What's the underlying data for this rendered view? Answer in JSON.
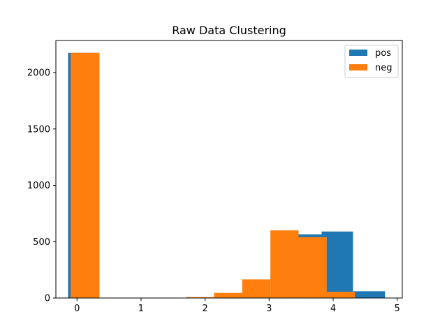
{
  "chart_data": {
    "type": "bar",
    "title": "Raw Data Clustering",
    "xlabel": "",
    "ylabel": "",
    "xlim": [
      -0.33,
      5.08
    ],
    "ylim": [
      0,
      2285
    ],
    "xticks": [
      0,
      1,
      2,
      3,
      4,
      5
    ],
    "yticks": [
      0,
      500,
      1000,
      1500,
      2000
    ],
    "legend_position": "top-right",
    "series": [
      {
        "name": "pos",
        "color": "#1f77b4",
        "bins": [
          {
            "x0": -0.14,
            "x1": 0.35,
            "value": 2175
          },
          {
            "x0": 0.35,
            "x1": 0.85,
            "value": 0
          },
          {
            "x0": 0.85,
            "x1": 1.34,
            "value": 0
          },
          {
            "x0": 1.34,
            "x1": 1.84,
            "value": 0
          },
          {
            "x0": 1.84,
            "x1": 2.33,
            "value": 0
          },
          {
            "x0": 2.33,
            "x1": 2.83,
            "value": 0
          },
          {
            "x0": 2.83,
            "x1": 3.32,
            "value": 0
          },
          {
            "x0": 3.32,
            "x1": 3.82,
            "value": 565
          },
          {
            "x0": 3.82,
            "x1": 4.31,
            "value": 590
          },
          {
            "x0": 4.31,
            "x1": 4.81,
            "value": 60
          }
        ]
      },
      {
        "name": "neg",
        "color": "#ff7f0e",
        "bins": [
          {
            "x0": -0.1,
            "x1": 0.35,
            "value": 2175
          },
          {
            "x0": 0.35,
            "x1": 0.8,
            "value": 0
          },
          {
            "x0": 0.8,
            "x1": 1.25,
            "value": 0
          },
          {
            "x0": 1.25,
            "x1": 1.7,
            "value": 0
          },
          {
            "x0": 1.7,
            "x1": 2.14,
            "value": 8
          },
          {
            "x0": 2.14,
            "x1": 2.58,
            "value": 45
          },
          {
            "x0": 2.58,
            "x1": 3.02,
            "value": 165
          },
          {
            "x0": 3.02,
            "x1": 3.46,
            "value": 600
          },
          {
            "x0": 3.46,
            "x1": 3.9,
            "value": 540
          },
          {
            "x0": 3.9,
            "x1": 4.34,
            "value": 55
          }
        ]
      }
    ]
  }
}
